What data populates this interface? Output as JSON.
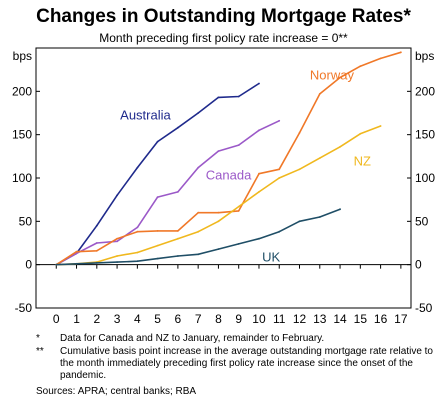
{
  "title": "Changes in Outstanding Mortgage Rates*",
  "subtitle": "Month preceding first policy rate increase = 0**",
  "chart_data": {
    "type": "line",
    "title": "Changes in Outstanding Mortgage Rates*",
    "subtitle": "Month preceding first policy rate increase = 0**",
    "y_unit_left": "bps",
    "y_unit_right": "bps",
    "xlim": [
      -1,
      17.5
    ],
    "ylim": [
      -50,
      250
    ],
    "x_ticks": [
      0,
      1,
      2,
      3,
      4,
      5,
      6,
      7,
      8,
      9,
      10,
      11,
      12,
      13,
      14,
      15,
      16,
      17
    ],
    "y_ticks": [
      -50,
      0,
      50,
      100,
      150,
      200
    ],
    "grid": false,
    "legend": "inline labels",
    "series": [
      {
        "name": "Australia",
        "color": "#1f2a8c",
        "label_pos": [
          4.4,
          172
        ],
        "points": [
          [
            0,
            0
          ],
          [
            1,
            13
          ],
          [
            2,
            45
          ],
          [
            3,
            80
          ],
          [
            4,
            112
          ],
          [
            5,
            142
          ],
          [
            6,
            158
          ],
          [
            7,
            175
          ],
          [
            8,
            193
          ],
          [
            9,
            194
          ],
          [
            10,
            209
          ]
        ]
      },
      {
        "name": "Canada",
        "color": "#9b59c8",
        "label_pos": [
          8.5,
          103
        ],
        "points": [
          [
            0,
            0
          ],
          [
            1,
            13
          ],
          [
            2,
            25
          ],
          [
            3,
            27
          ],
          [
            4,
            43
          ],
          [
            5,
            78
          ],
          [
            6,
            84
          ],
          [
            7,
            112
          ],
          [
            8,
            131
          ],
          [
            9,
            138
          ],
          [
            10,
            155
          ],
          [
            11,
            166
          ]
        ]
      },
      {
        "name": "Norway",
        "color": "#f07828",
        "label_pos": [
          13.6,
          218
        ],
        "points": [
          [
            0,
            0
          ],
          [
            1,
            15
          ],
          [
            2,
            16
          ],
          [
            3,
            30
          ],
          [
            4,
            38
          ],
          [
            5,
            39
          ],
          [
            6,
            39
          ],
          [
            7,
            60
          ],
          [
            8,
            60
          ],
          [
            9,
            62
          ],
          [
            10,
            105
          ],
          [
            11,
            110
          ],
          [
            12,
            152
          ],
          [
            13,
            197
          ],
          [
            14,
            216
          ],
          [
            15,
            229
          ],
          [
            16,
            238
          ],
          [
            17,
            245
          ]
        ]
      },
      {
        "name": "NZ",
        "color": "#f0b81e",
        "label_pos": [
          15.1,
          119
        ],
        "points": [
          [
            0,
            0
          ],
          [
            1,
            1
          ],
          [
            2,
            3
          ],
          [
            3,
            10
          ],
          [
            4,
            14
          ],
          [
            5,
            22
          ],
          [
            6,
            30
          ],
          [
            7,
            38
          ],
          [
            8,
            50
          ],
          [
            9,
            67
          ],
          [
            10,
            84
          ],
          [
            11,
            100
          ],
          [
            12,
            110
          ],
          [
            13,
            123
          ],
          [
            14,
            136
          ],
          [
            15,
            151
          ],
          [
            16,
            160
          ]
        ]
      },
      {
        "name": "UK",
        "color": "#1f4e66",
        "label_pos": [
          10.6,
          8
        ],
        "points": [
          [
            0,
            0
          ],
          [
            1,
            1
          ],
          [
            2,
            2
          ],
          [
            3,
            3
          ],
          [
            4,
            4
          ],
          [
            5,
            7
          ],
          [
            6,
            10
          ],
          [
            7,
            12
          ],
          [
            8,
            18
          ],
          [
            9,
            24
          ],
          [
            10,
            30
          ],
          [
            11,
            38
          ],
          [
            12,
            50
          ],
          [
            13,
            55
          ],
          [
            14,
            64
          ]
        ]
      }
    ]
  },
  "notes": [
    {
      "mark": "*",
      "text": "Data for Canada and NZ to January, remainder to February."
    },
    {
      "mark": "**",
      "text": "Cumulative basis point increase in the average outstanding mortgage rate relative to the month immediately preceding first policy rate increase since the onset of the pandemic."
    }
  ],
  "source": "Sources: APRA; central banks; RBA"
}
